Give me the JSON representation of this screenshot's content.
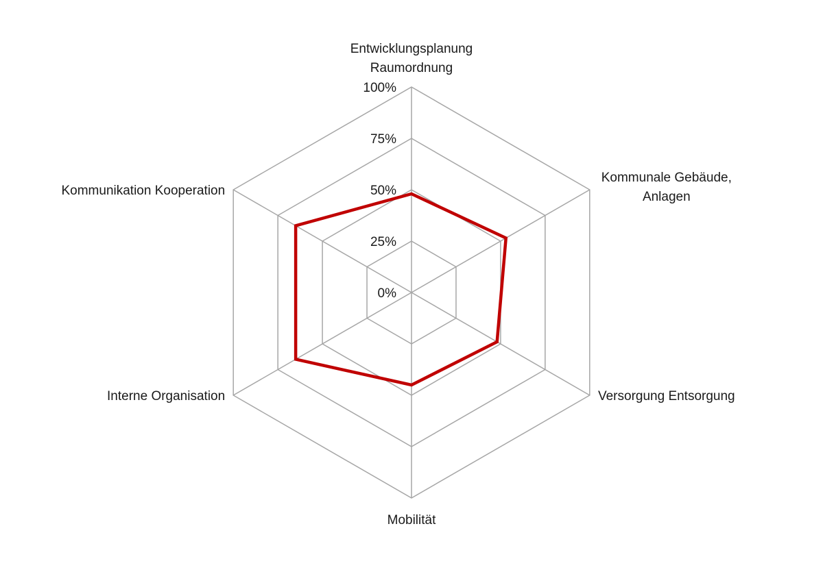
{
  "chart_data": {
    "type": "radar",
    "categories": [
      [
        "Entwicklungsplanung",
        "Raumordnung"
      ],
      [
        "Kommunale Gebäude,",
        "Anlagen"
      ],
      [
        "Versorgung Entsorgung"
      ],
      [
        "Mobilität"
      ],
      [
        "Interne Organisation"
      ],
      [
        "Kommunikation Kooperation"
      ]
    ],
    "series": [
      {
        "values": [
          48,
          53,
          48,
          45,
          65,
          65
        ],
        "color": "#c00000"
      }
    ],
    "r_ticks": [
      "0%",
      "25%",
      "50%",
      "75%",
      "100%"
    ],
    "r_range": [
      0,
      100
    ],
    "grid": true,
    "legend": "none",
    "colors": {
      "grid": "#a6a6a6",
      "text": "#1a1a1a"
    }
  }
}
